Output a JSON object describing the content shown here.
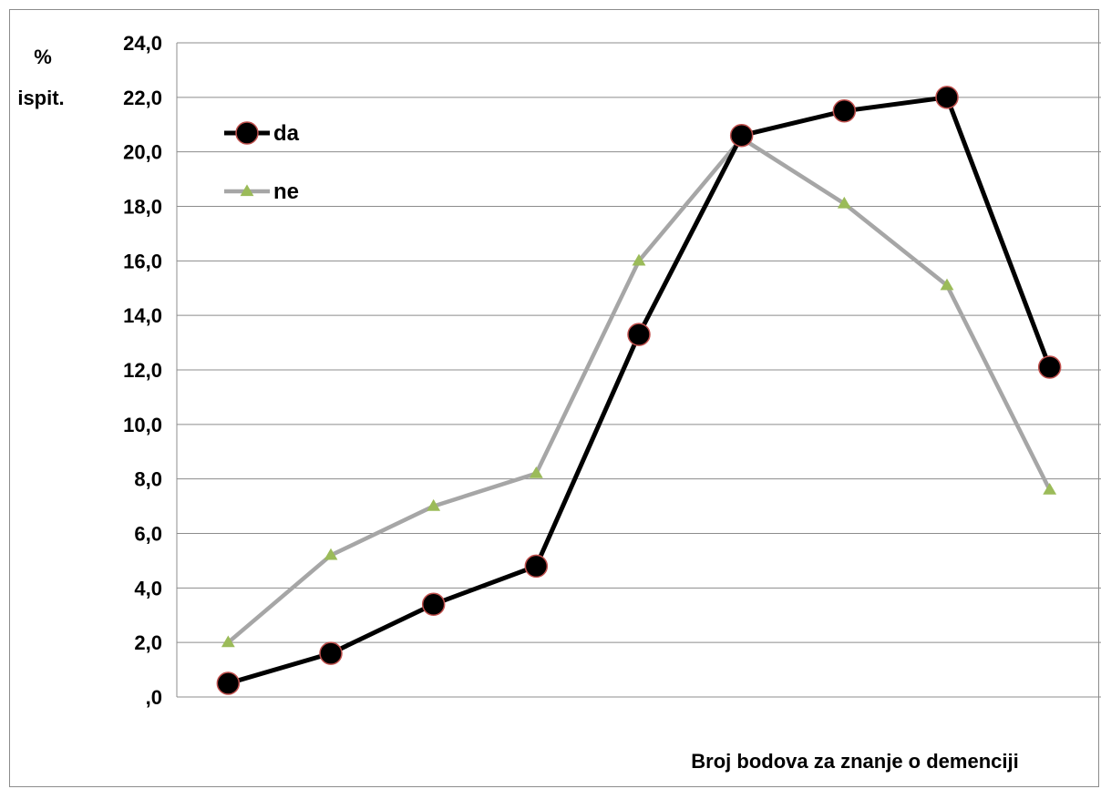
{
  "chart_data": {
    "type": "line",
    "title": "",
    "ylabel_lines": [
      "%",
      "ispit."
    ],
    "xlabel": "Broj bodova za znanje o demenciji",
    "ylim": [
      0,
      24
    ],
    "y_ticks": [
      0,
      2,
      4,
      6,
      8,
      10,
      12,
      14,
      16,
      18,
      20,
      22,
      24
    ],
    "y_tick_labels": [
      ",0",
      "2,0",
      "4,0",
      "6,0",
      "8,0",
      "10,0",
      "12,0",
      "14,0",
      "16,0",
      "18,0",
      "20,0",
      "22,0",
      "24,0"
    ],
    "x_count": 9,
    "grid": true,
    "legend_position": "top-left",
    "series": [
      {
        "name": "da",
        "color": "#000000",
        "marker": "circle",
        "marker_fill": "#000000",
        "marker_edge": "#c0504d",
        "values": [
          0.5,
          1.6,
          3.4,
          4.8,
          13.3,
          20.6,
          21.5,
          22.0,
          12.1
        ]
      },
      {
        "name": "ne",
        "color": "#a6a6a6",
        "marker": "triangle",
        "marker_fill": "#9bbb59",
        "values": [
          2.0,
          5.2,
          7.0,
          8.2,
          16.0,
          20.5,
          18.1,
          15.1,
          7.6
        ]
      }
    ]
  }
}
